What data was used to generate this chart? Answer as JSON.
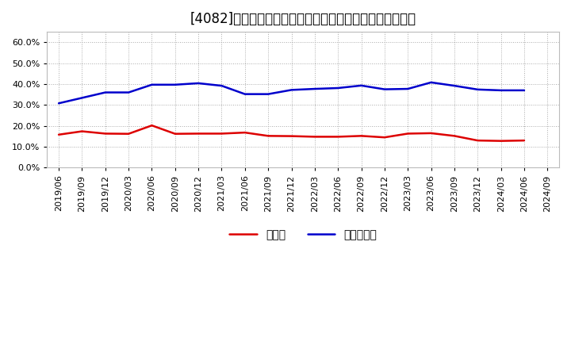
{
  "title": "[4082]　現預金、有利子負債の総資産に対する比率の推移",
  "x_labels": [
    "2019/06",
    "2019/09",
    "2019/12",
    "2020/03",
    "2020/06",
    "2020/09",
    "2020/12",
    "2021/03",
    "2021/06",
    "2021/09",
    "2021/12",
    "2022/03",
    "2022/06",
    "2022/09",
    "2022/12",
    "2023/03",
    "2023/06",
    "2023/09",
    "2023/12",
    "2024/03",
    "2024/06",
    "2024/09"
  ],
  "cash": [
    0.158,
    0.174,
    0.163,
    0.162,
    0.202,
    0.162,
    0.163,
    0.163,
    0.168,
    0.152,
    0.151,
    0.148,
    0.148,
    0.152,
    0.145,
    0.163,
    0.165,
    0.152,
    0.13,
    0.128,
    0.13,
    null
  ],
  "debt": [
    0.308,
    0.334,
    0.36,
    0.36,
    0.397,
    0.397,
    0.404,
    0.392,
    0.352,
    0.352,
    0.372,
    0.377,
    0.381,
    0.393,
    0.375,
    0.377,
    0.408,
    0.392,
    0.374,
    0.37,
    0.37,
    null
  ],
  "cash_color": "#dd0000",
  "debt_color": "#0000cc",
  "background_color": "#ffffff",
  "plot_bg_color": "#ffffff",
  "grid_color": "#aaaaaa",
  "legend_cash": "現預金",
  "legend_debt": "有利子負債",
  "ylim": [
    0.0,
    0.65
  ],
  "yticks": [
    0.0,
    0.1,
    0.2,
    0.3,
    0.4,
    0.5,
    0.6
  ],
  "title_fontsize": 12,
  "tick_fontsize": 8,
  "legend_fontsize": 10,
  "linewidth": 1.8
}
